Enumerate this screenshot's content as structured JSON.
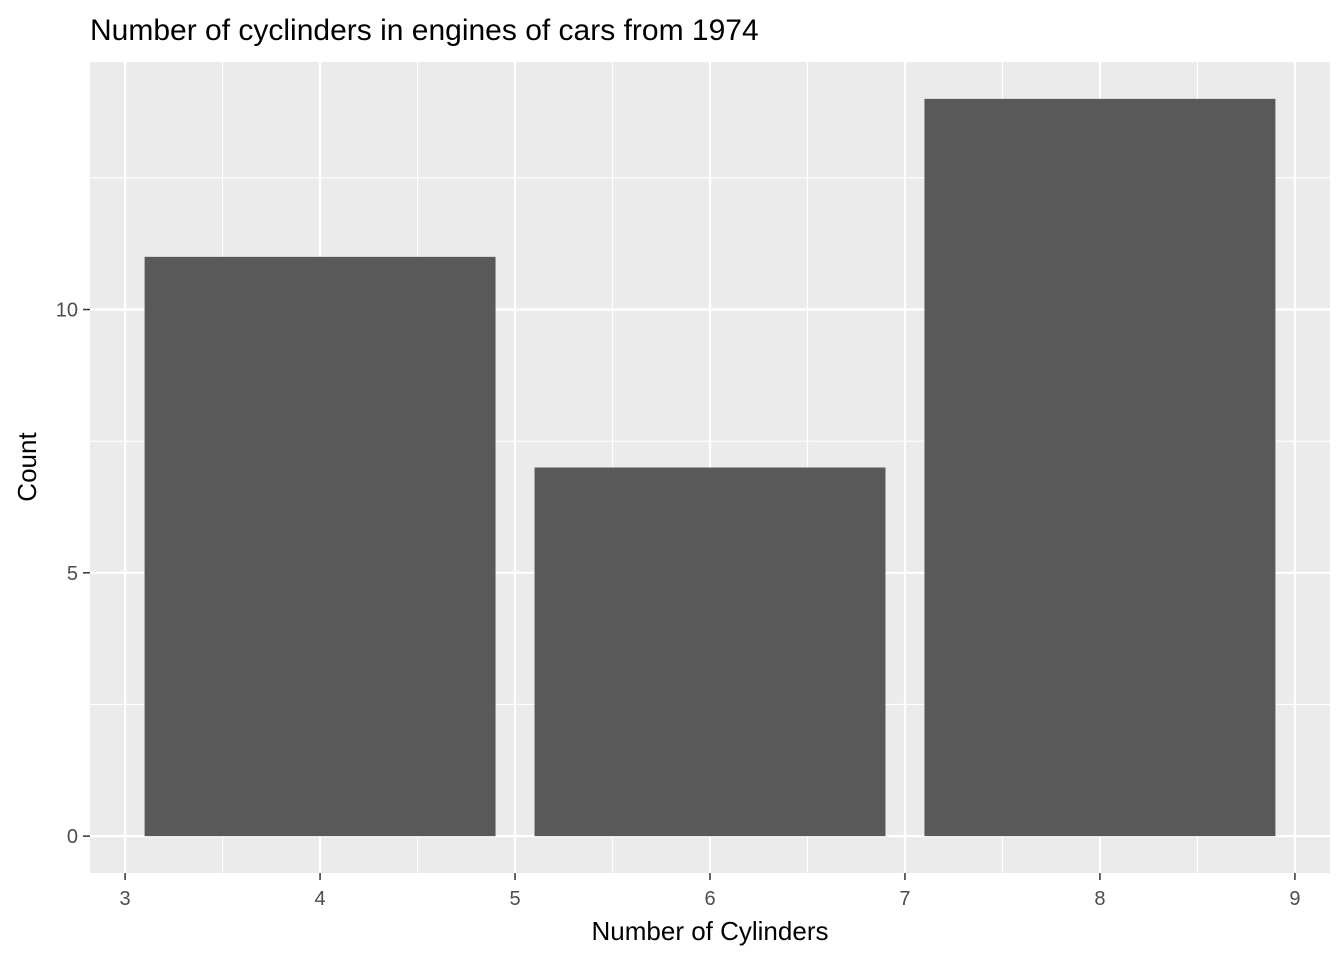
{
  "chart_data": {
    "type": "bar",
    "title": "Number of cyclinders in engines of cars from 1974",
    "xlabel": "Number of Cylinders",
    "ylabel": "Count",
    "x": [
      4,
      6,
      8
    ],
    "values": [
      11,
      7,
      14
    ],
    "bar_width": 1.8,
    "xlim": [
      2.82,
      9.18
    ],
    "ylim": [
      -0.7,
      14.7
    ],
    "xticks": [
      3,
      4,
      5,
      6,
      7,
      8,
      9
    ],
    "xtick_labels": [
      "3",
      "4",
      "5",
      "6",
      "7",
      "8",
      "9"
    ],
    "yticks": [
      0,
      5,
      10
    ],
    "ytick_labels": [
      "0",
      "5",
      "10"
    ],
    "grid": true,
    "legend": "none"
  },
  "colors": {
    "panel_background": "#EBEBEB",
    "grid_major": "#FFFFFF",
    "bar_fill": "#595959",
    "tick_mark": "#333333",
    "tick_label": "#4D4D4D",
    "text": "#000000"
  }
}
